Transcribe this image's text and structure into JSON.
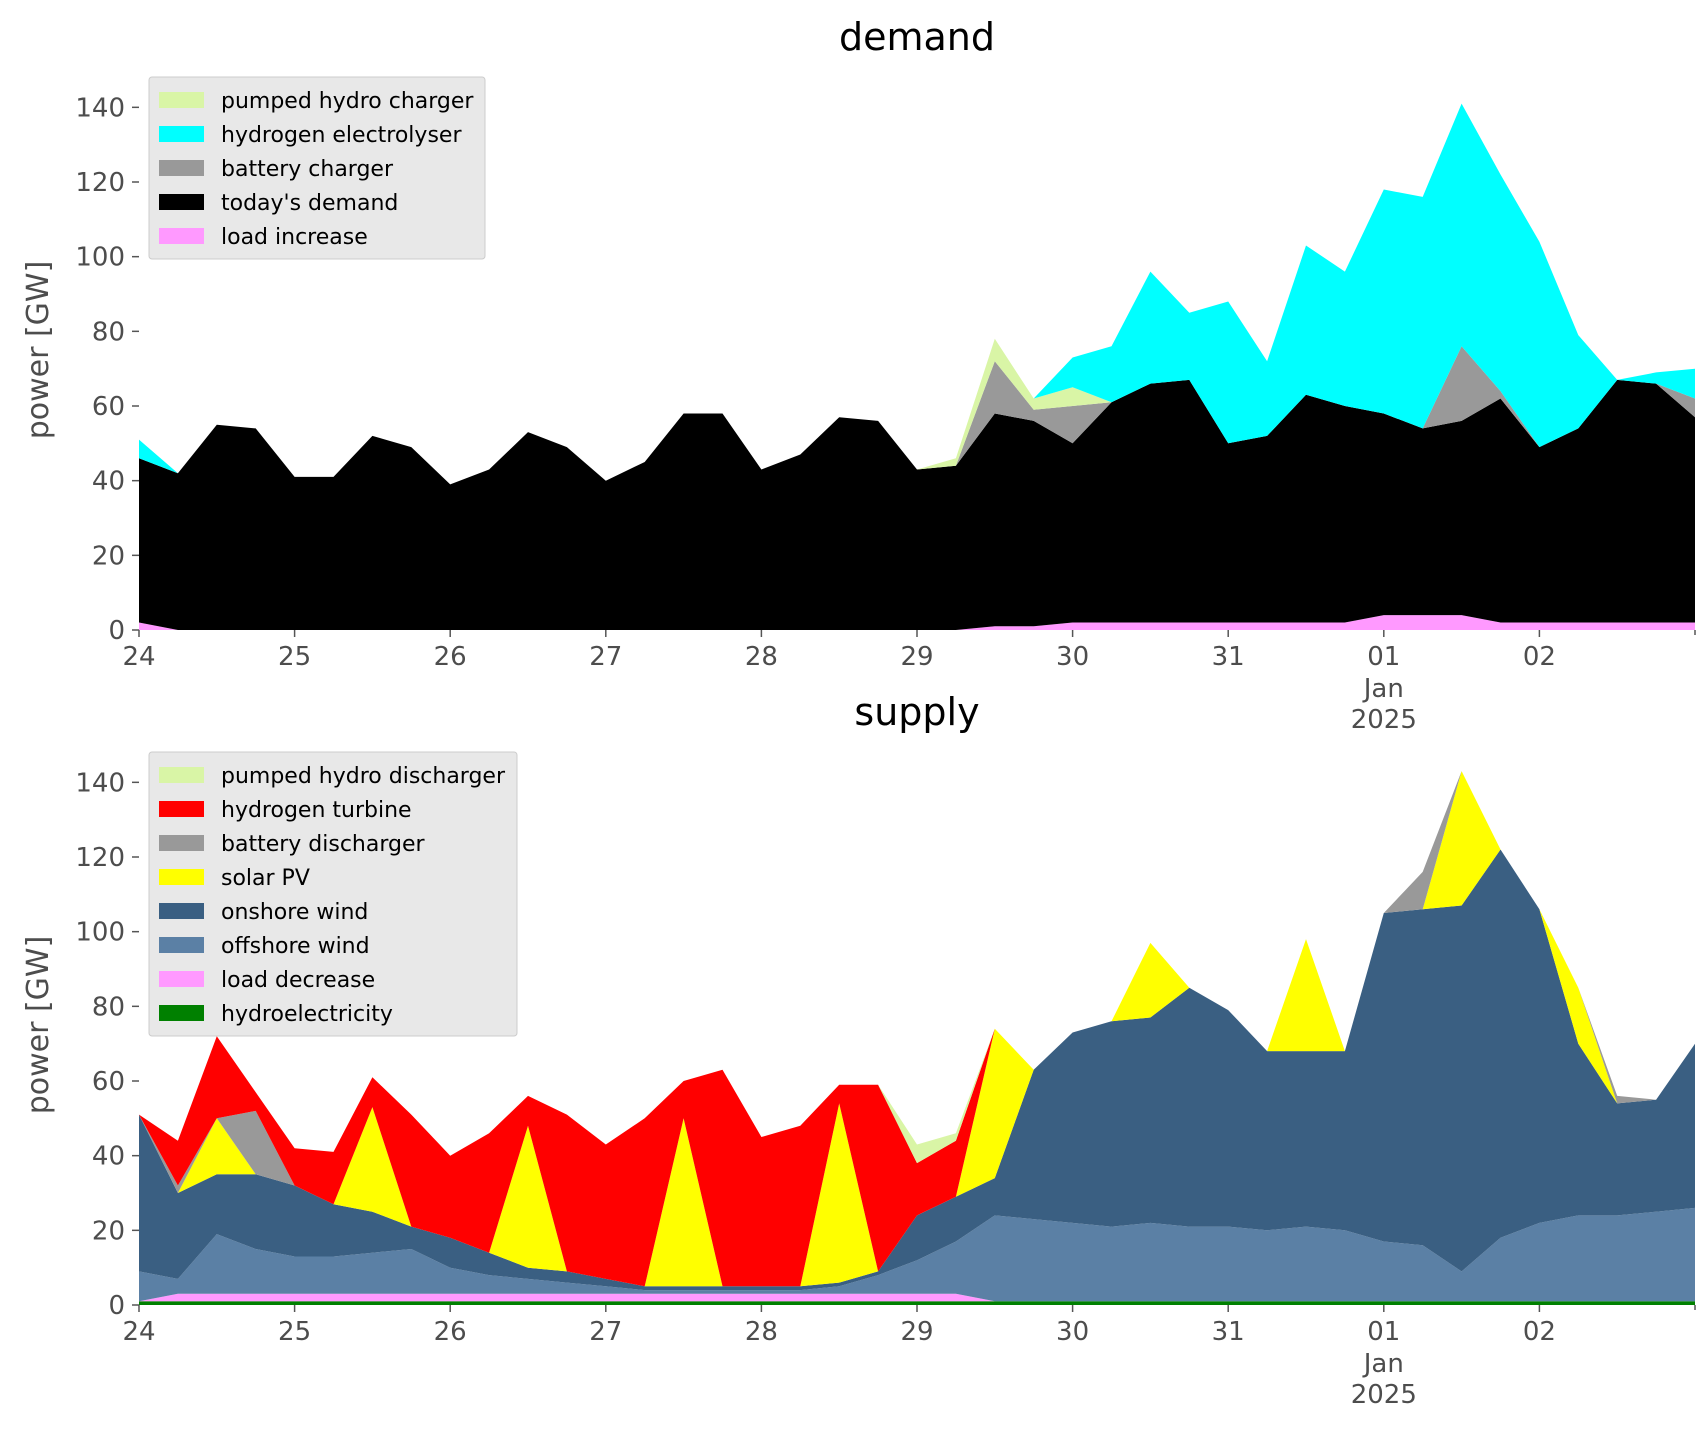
{
  "chart_data": [
    {
      "type": "area",
      "title": "demand",
      "ylabel": "power [GW]",
      "ylim": [
        0,
        150
      ],
      "yticks": [
        0,
        20,
        40,
        60,
        80,
        100,
        120,
        140
      ],
      "xlim": [
        0,
        10
      ],
      "xticks": [
        {
          "x": 0,
          "label": "24"
        },
        {
          "x": 1,
          "label": "25"
        },
        {
          "x": 2,
          "label": "26"
        },
        {
          "x": 3,
          "label": "27"
        },
        {
          "x": 4,
          "label": "28"
        },
        {
          "x": 5,
          "label": "29"
        },
        {
          "x": 6,
          "label": "30"
        },
        {
          "x": 7,
          "label": "31"
        },
        {
          "x": 8,
          "label": "01"
        },
        {
          "x": 9,
          "label": "02"
        }
      ],
      "xsublabel_month": "Jan",
      "xsublabel_year": "2025",
      "x": [
        0,
        0.25,
        0.5,
        0.75,
        1,
        1.25,
        1.5,
        1.75,
        2,
        2.25,
        2.5,
        2.75,
        3,
        3.25,
        3.5,
        3.75,
        4,
        4.25,
        4.5,
        4.75,
        5,
        5.25,
        5.5,
        5.75,
        6,
        6.25,
        6.5,
        6.75,
        7,
        7.25,
        7.5,
        7.75,
        8,
        8.25,
        8.5,
        8.75,
        9,
        9.25,
        9.5,
        9.75,
        10
      ],
      "series": [
        {
          "name": "load increase",
          "color": "#ff99ff",
          "values": [
            2,
            0,
            0,
            0,
            0,
            0,
            0,
            0,
            0,
            0,
            0,
            0,
            0,
            0,
            0,
            0,
            0,
            0,
            0,
            0,
            0,
            0,
            1,
            1,
            2,
            2,
            2,
            2,
            2,
            2,
            2,
            2,
            4,
            4,
            4,
            2,
            2,
            2,
            2,
            2,
            2
          ]
        },
        {
          "name": "today's demand",
          "color": "#000000",
          "values": [
            44,
            42,
            55,
            54,
            41,
            41,
            52,
            49,
            39,
            43,
            53,
            49,
            40,
            45,
            58,
            58,
            43,
            47,
            57,
            56,
            43,
            44,
            57,
            55,
            48,
            59,
            64,
            65,
            48,
            50,
            61,
            58,
            54,
            50,
            52,
            60,
            47,
            52,
            65,
            64,
            55
          ]
        },
        {
          "name": "battery charger",
          "color": "#999999",
          "values": [
            0,
            0,
            0,
            0,
            0,
            0,
            0,
            0,
            0,
            0,
            0,
            0,
            0,
            0,
            0,
            0,
            0,
            0,
            0,
            0,
            0,
            0,
            14,
            3,
            10,
            0,
            0,
            0,
            0,
            0,
            0,
            0,
            0,
            0,
            20,
            2,
            0,
            0,
            0,
            0,
            5
          ]
        },
        {
          "name": "pumped hydro charger",
          "color": "#d9f5a6",
          "values": [
            0,
            0,
            0,
            0,
            0,
            0,
            0,
            0,
            0,
            0,
            0,
            0,
            0,
            0,
            0,
            0,
            0,
            0,
            0,
            0,
            0,
            2,
            6,
            3,
            5,
            0,
            0,
            0,
            0,
            0,
            0,
            0,
            0,
            0,
            0,
            0,
            0,
            0,
            0,
            0,
            0
          ]
        },
        {
          "name": "hydrogen electrolyser",
          "color": "#00ffff",
          "values": [
            5,
            0,
            0,
            0,
            0,
            0,
            0,
            0,
            0,
            0,
            0,
            0,
            0,
            0,
            0,
            0,
            0,
            0,
            0,
            0,
            0,
            0,
            0,
            0,
            8,
            15,
            30,
            18,
            38,
            20,
            40,
            36,
            60,
            62,
            65,
            58,
            55,
            25,
            0,
            3,
            8
          ]
        }
      ],
      "legend": {
        "location": "upper-left",
        "entries": [
          {
            "label": "pumped hydro charger",
            "color": "#d9f5a6"
          },
          {
            "label": "hydrogen electrolyser",
            "color": "#00ffff"
          },
          {
            "label": "battery charger",
            "color": "#999999"
          },
          {
            "label": "today's demand",
            "color": "#000000"
          },
          {
            "label": "load increase",
            "color": "#ff99ff"
          }
        ]
      },
      "grid": false
    },
    {
      "type": "area",
      "title": "supply",
      "ylabel": "power [GW]",
      "ylim": [
        0,
        150
      ],
      "yticks": [
        0,
        20,
        40,
        60,
        80,
        100,
        120,
        140
      ],
      "xlim": [
        0,
        10
      ],
      "xticks": [
        {
          "x": 0,
          "label": "24"
        },
        {
          "x": 1,
          "label": "25"
        },
        {
          "x": 2,
          "label": "26"
        },
        {
          "x": 3,
          "label": "27"
        },
        {
          "x": 4,
          "label": "28"
        },
        {
          "x": 5,
          "label": "29"
        },
        {
          "x": 6,
          "label": "30"
        },
        {
          "x": 7,
          "label": "31"
        },
        {
          "x": 8,
          "label": "01"
        },
        {
          "x": 9,
          "label": "02"
        }
      ],
      "xsublabel_month": "Jan",
      "xsublabel_year": "2025",
      "x": [
        0,
        0.25,
        0.5,
        0.75,
        1,
        1.25,
        1.5,
        1.75,
        2,
        2.25,
        2.5,
        2.75,
        3,
        3.25,
        3.5,
        3.75,
        4,
        4.25,
        4.5,
        4.75,
        5,
        5.25,
        5.5,
        5.75,
        6,
        6.25,
        6.5,
        6.75,
        7,
        7.25,
        7.5,
        7.75,
        8,
        8.25,
        8.5,
        8.75,
        9,
        9.25,
        9.5,
        9.75,
        10
      ],
      "series": [
        {
          "name": "hydroelectricity",
          "color": "#008000",
          "values": [
            1,
            1,
            1,
            1,
            1,
            1,
            1,
            1,
            1,
            1,
            1,
            1,
            1,
            1,
            1,
            1,
            1,
            1,
            1,
            1,
            1,
            1,
            1,
            1,
            1,
            1,
            1,
            1,
            1,
            1,
            1,
            1,
            1,
            1,
            1,
            1,
            1,
            1,
            1,
            1,
            1
          ]
        },
        {
          "name": "load decrease",
          "color": "#ff99ff",
          "values": [
            0,
            2,
            2,
            2,
            2,
            2,
            2,
            2,
            2,
            2,
            2,
            2,
            2,
            2,
            2,
            2,
            2,
            2,
            2,
            2,
            2,
            2,
            0,
            0,
            0,
            0,
            0,
            0,
            0,
            0,
            0,
            0,
            0,
            0,
            0,
            0,
            0,
            0,
            0,
            0,
            0
          ]
        },
        {
          "name": "offshore wind",
          "color": "#5b80a5",
          "values": [
            8,
            4,
            16,
            12,
            10,
            10,
            11,
            12,
            7,
            5,
            4,
            3,
            2,
            1,
            1,
            1,
            1,
            1,
            2,
            5,
            9,
            14,
            23,
            22,
            21,
            20,
            21,
            20,
            20,
            19,
            20,
            19,
            16,
            15,
            8,
            17,
            21,
            23,
            23,
            24,
            25
          ]
        },
        {
          "name": "onshore wind",
          "color": "#3a5f82",
          "values": [
            42,
            23,
            16,
            20,
            19,
            14,
            11,
            6,
            8,
            6,
            3,
            3,
            2,
            1,
            1,
            1,
            1,
            1,
            1,
            1,
            12,
            12,
            10,
            40,
            51,
            55,
            55,
            64,
            58,
            48,
            47,
            48,
            88,
            90,
            98,
            104,
            84,
            46,
            30,
            30,
            44
          ]
        },
        {
          "name": "solar PV",
          "color": "#ffff00",
          "values": [
            0,
            0,
            15,
            0,
            0,
            0,
            28,
            0,
            0,
            0,
            38,
            0,
            0,
            0,
            45,
            0,
            0,
            0,
            48,
            0,
            0,
            0,
            40,
            0,
            0,
            0,
            20,
            0,
            0,
            0,
            30,
            0,
            0,
            0,
            36,
            0,
            0,
            15,
            0,
            0,
            0
          ]
        },
        {
          "name": "battery discharger",
          "color": "#999999",
          "values": [
            0,
            2,
            0,
            17,
            0,
            0,
            0,
            0,
            0,
            0,
            0,
            0,
            0,
            0,
            0,
            0,
            0,
            0,
            0,
            0,
            0,
            0,
            0,
            0,
            0,
            0,
            0,
            0,
            0,
            0,
            0,
            0,
            0,
            10,
            0,
            0,
            0,
            0,
            2,
            0,
            0
          ]
        },
        {
          "name": "hydrogen turbine",
          "color": "#ff0000",
          "values": [
            0,
            12,
            22,
            5,
            10,
            14,
            8,
            30,
            22,
            32,
            8,
            42,
            36,
            45,
            10,
            58,
            40,
            43,
            5,
            50,
            14,
            15,
            0,
            0,
            0,
            0,
            0,
            0,
            0,
            0,
            0,
            0,
            0,
            0,
            0,
            0,
            0,
            0,
            0,
            0,
            0
          ]
        },
        {
          "name": "pumped hydro discharger",
          "color": "#d9f5a6",
          "values": [
            0,
            0,
            0,
            0,
            0,
            0,
            0,
            0,
            0,
            0,
            0,
            0,
            0,
            0,
            0,
            0,
            0,
            0,
            0,
            0,
            5,
            2,
            0,
            0,
            0,
            0,
            0,
            0,
            0,
            0,
            0,
            0,
            0,
            0,
            0,
            0,
            0,
            0,
            0,
            0,
            0
          ]
        }
      ],
      "legend": {
        "location": "upper-left",
        "entries": [
          {
            "label": "pumped hydro discharger",
            "color": "#d9f5a6"
          },
          {
            "label": "hydrogen turbine",
            "color": "#ff0000"
          },
          {
            "label": "battery discharger",
            "color": "#999999"
          },
          {
            "label": "solar PV",
            "color": "#ffff00"
          },
          {
            "label": "onshore wind",
            "color": "#3a5f82"
          },
          {
            "label": "offshore wind",
            "color": "#5b80a5"
          },
          {
            "label": "load decrease",
            "color": "#ff99ff"
          },
          {
            "label": "hydroelectricity",
            "color": "#008000"
          }
        ]
      },
      "grid": false
    }
  ]
}
